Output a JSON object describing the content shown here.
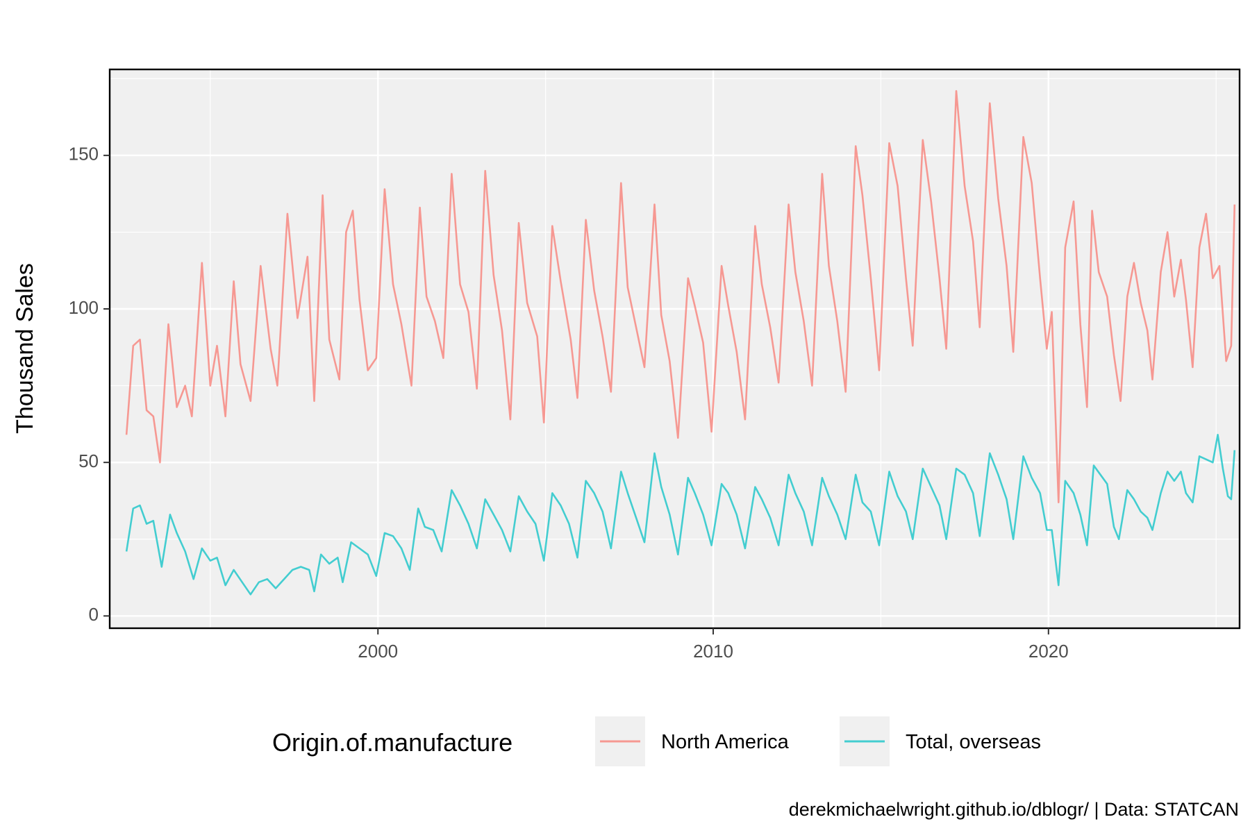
{
  "chart_data": {
    "type": "line",
    "title": "",
    "xlabel": "",
    "ylabel": "Thousand Sales",
    "xlim": [
      1992.0,
      2025.7
    ],
    "ylim": [
      -4,
      178
    ],
    "x_ticks": [
      2000,
      2010,
      2020
    ],
    "x_tick_labels": [
      "2000",
      "2010",
      "2020"
    ],
    "y_ticks": [
      0,
      50,
      100,
      150
    ],
    "y_tick_labels": [
      "0",
      "50",
      "100",
      "150"
    ],
    "grid": true,
    "legend": {
      "title": "Origin.of.manufacture",
      "position": "bottom"
    },
    "caption": "derekmichaelwright.github.io/dblogr/ | Data: STATCAN",
    "series": [
      {
        "name": "North America",
        "color": "#F8766D",
        "points": [
          [
            1992.5,
            59
          ],
          [
            1992.7,
            88
          ],
          [
            1992.9,
            90
          ],
          [
            1993.1,
            67
          ],
          [
            1993.3,
            65
          ],
          [
            1993.5,
            50
          ],
          [
            1993.75,
            95
          ],
          [
            1994.0,
            68
          ],
          [
            1994.25,
            75
          ],
          [
            1994.45,
            65
          ],
          [
            1994.75,
            115
          ],
          [
            1995.0,
            75
          ],
          [
            1995.2,
            88
          ],
          [
            1995.45,
            65
          ],
          [
            1995.7,
            109
          ],
          [
            1995.9,
            82
          ],
          [
            1996.2,
            70
          ],
          [
            1996.5,
            114
          ],
          [
            1996.8,
            87
          ],
          [
            1997.0,
            75
          ],
          [
            1997.3,
            131
          ],
          [
            1997.6,
            97
          ],
          [
            1997.9,
            117
          ],
          [
            1998.1,
            70
          ],
          [
            1998.35,
            137
          ],
          [
            1998.55,
            90
          ],
          [
            1998.85,
            77
          ],
          [
            1999.05,
            125
          ],
          [
            1999.25,
            132
          ],
          [
            1999.45,
            103
          ],
          [
            1999.7,
            80
          ],
          [
            1999.95,
            84
          ],
          [
            2000.2,
            139
          ],
          [
            2000.45,
            108
          ],
          [
            2000.7,
            95
          ],
          [
            2001.0,
            75
          ],
          [
            2001.25,
            133
          ],
          [
            2001.45,
            104
          ],
          [
            2001.7,
            96
          ],
          [
            2001.95,
            84
          ],
          [
            2002.2,
            144
          ],
          [
            2002.45,
            108
          ],
          [
            2002.7,
            99
          ],
          [
            2002.95,
            74
          ],
          [
            2003.2,
            145
          ],
          [
            2003.45,
            111
          ],
          [
            2003.7,
            93
          ],
          [
            2003.95,
            64
          ],
          [
            2004.2,
            128
          ],
          [
            2004.45,
            102
          ],
          [
            2004.75,
            91
          ],
          [
            2004.95,
            63
          ],
          [
            2005.2,
            127
          ],
          [
            2005.45,
            109
          ],
          [
            2005.75,
            90
          ],
          [
            2005.95,
            71
          ],
          [
            2006.2,
            129
          ],
          [
            2006.45,
            106
          ],
          [
            2006.7,
            91
          ],
          [
            2006.95,
            73
          ],
          [
            2007.25,
            141
          ],
          [
            2007.45,
            107
          ],
          [
            2007.7,
            94
          ],
          [
            2007.95,
            81
          ],
          [
            2008.25,
            134
          ],
          [
            2008.45,
            98
          ],
          [
            2008.7,
            83
          ],
          [
            2008.95,
            58
          ],
          [
            2009.25,
            110
          ],
          [
            2009.45,
            101
          ],
          [
            2009.7,
            89
          ],
          [
            2009.95,
            60
          ],
          [
            2010.25,
            114
          ],
          [
            2010.45,
            101
          ],
          [
            2010.7,
            86
          ],
          [
            2010.95,
            64
          ],
          [
            2011.25,
            127
          ],
          [
            2011.45,
            108
          ],
          [
            2011.7,
            94
          ],
          [
            2011.95,
            76
          ],
          [
            2012.25,
            134
          ],
          [
            2012.45,
            112
          ],
          [
            2012.7,
            96
          ],
          [
            2012.95,
            75
          ],
          [
            2013.25,
            144
          ],
          [
            2013.45,
            114
          ],
          [
            2013.7,
            96
          ],
          [
            2013.95,
            73
          ],
          [
            2014.25,
            153
          ],
          [
            2014.45,
            137
          ],
          [
            2014.7,
            110
          ],
          [
            2014.95,
            80
          ],
          [
            2015.25,
            154
          ],
          [
            2015.5,
            140
          ],
          [
            2015.75,
            110
          ],
          [
            2015.95,
            88
          ],
          [
            2016.25,
            155
          ],
          [
            2016.5,
            135
          ],
          [
            2016.75,
            110
          ],
          [
            2016.95,
            87
          ],
          [
            2017.25,
            171
          ],
          [
            2017.5,
            140
          ],
          [
            2017.75,
            122
          ],
          [
            2017.95,
            94
          ],
          [
            2018.25,
            167
          ],
          [
            2018.5,
            136
          ],
          [
            2018.75,
            114
          ],
          [
            2018.95,
            86
          ],
          [
            2019.25,
            156
          ],
          [
            2019.5,
            141
          ],
          [
            2019.75,
            110
          ],
          [
            2019.95,
            87
          ],
          [
            2020.1,
            99
          ],
          [
            2020.3,
            37
          ],
          [
            2020.5,
            120
          ],
          [
            2020.75,
            135
          ],
          [
            2020.95,
            95
          ],
          [
            2021.15,
            68
          ],
          [
            2021.3,
            132
          ],
          [
            2021.5,
            112
          ],
          [
            2021.75,
            104
          ],
          [
            2021.95,
            85
          ],
          [
            2022.15,
            70
          ],
          [
            2022.35,
            104
          ],
          [
            2022.55,
            115
          ],
          [
            2022.75,
            102
          ],
          [
            2022.95,
            93
          ],
          [
            2023.1,
            77
          ],
          [
            2023.35,
            112
          ],
          [
            2023.55,
            125
          ],
          [
            2023.75,
            104
          ],
          [
            2023.95,
            116
          ],
          [
            2024.1,
            103
          ],
          [
            2024.3,
            81
          ],
          [
            2024.5,
            120
          ],
          [
            2024.7,
            131
          ],
          [
            2024.9,
            110
          ],
          [
            2025.1,
            114
          ],
          [
            2025.3,
            83
          ],
          [
            2025.45,
            88
          ],
          [
            2025.55,
            134
          ]
        ]
      },
      {
        "name": "Total, overseas",
        "color": "#00BFC4",
        "points": [
          [
            1992.5,
            21
          ],
          [
            1992.7,
            35
          ],
          [
            1992.9,
            36
          ],
          [
            1993.1,
            30
          ],
          [
            1993.3,
            31
          ],
          [
            1993.55,
            16
          ],
          [
            1993.8,
            33
          ],
          [
            1994.0,
            27
          ],
          [
            1994.25,
            21
          ],
          [
            1994.5,
            12
          ],
          [
            1994.75,
            22
          ],
          [
            1995.0,
            18
          ],
          [
            1995.2,
            19
          ],
          [
            1995.45,
            10
          ],
          [
            1995.7,
            15
          ],
          [
            1995.95,
            11
          ],
          [
            1996.2,
            7
          ],
          [
            1996.45,
            11
          ],
          [
            1996.7,
            12
          ],
          [
            1996.95,
            9
          ],
          [
            1997.2,
            12
          ],
          [
            1997.45,
            15
          ],
          [
            1997.7,
            16
          ],
          [
            1997.95,
            15
          ],
          [
            1998.1,
            8
          ],
          [
            1998.3,
            20
          ],
          [
            1998.55,
            17
          ],
          [
            1998.8,
            19
          ],
          [
            1998.95,
            11
          ],
          [
            1999.2,
            24
          ],
          [
            1999.45,
            22
          ],
          [
            1999.7,
            20
          ],
          [
            1999.95,
            13
          ],
          [
            2000.2,
            27
          ],
          [
            2000.45,
            26
          ],
          [
            2000.7,
            22
          ],
          [
            2000.95,
            15
          ],
          [
            2001.2,
            35
          ],
          [
            2001.4,
            29
          ],
          [
            2001.65,
            28
          ],
          [
            2001.9,
            21
          ],
          [
            2002.2,
            41
          ],
          [
            2002.45,
            36
          ],
          [
            2002.7,
            30
          ],
          [
            2002.95,
            22
          ],
          [
            2003.2,
            38
          ],
          [
            2003.45,
            33
          ],
          [
            2003.7,
            28
          ],
          [
            2003.95,
            21
          ],
          [
            2004.2,
            39
          ],
          [
            2004.45,
            34
          ],
          [
            2004.7,
            30
          ],
          [
            2004.95,
            18
          ],
          [
            2005.2,
            40
          ],
          [
            2005.45,
            36
          ],
          [
            2005.7,
            30
          ],
          [
            2005.95,
            19
          ],
          [
            2006.2,
            44
          ],
          [
            2006.45,
            40
          ],
          [
            2006.7,
            34
          ],
          [
            2006.95,
            22
          ],
          [
            2007.25,
            47
          ],
          [
            2007.45,
            40
          ],
          [
            2007.7,
            32
          ],
          [
            2007.95,
            24
          ],
          [
            2008.25,
            53
          ],
          [
            2008.45,
            42
          ],
          [
            2008.7,
            33
          ],
          [
            2008.95,
            20
          ],
          [
            2009.25,
            45
          ],
          [
            2009.45,
            40
          ],
          [
            2009.7,
            33
          ],
          [
            2009.95,
            23
          ],
          [
            2010.25,
            43
          ],
          [
            2010.45,
            40
          ],
          [
            2010.7,
            33
          ],
          [
            2010.95,
            22
          ],
          [
            2011.25,
            42
          ],
          [
            2011.45,
            38
          ],
          [
            2011.7,
            32
          ],
          [
            2011.95,
            23
          ],
          [
            2012.25,
            46
          ],
          [
            2012.45,
            40
          ],
          [
            2012.7,
            34
          ],
          [
            2012.95,
            23
          ],
          [
            2013.25,
            45
          ],
          [
            2013.45,
            39
          ],
          [
            2013.7,
            33
          ],
          [
            2013.95,
            25
          ],
          [
            2014.25,
            46
          ],
          [
            2014.45,
            37
          ],
          [
            2014.7,
            34
          ],
          [
            2014.95,
            23
          ],
          [
            2015.25,
            47
          ],
          [
            2015.5,
            39
          ],
          [
            2015.75,
            34
          ],
          [
            2015.95,
            25
          ],
          [
            2016.25,
            48
          ],
          [
            2016.5,
            42
          ],
          [
            2016.75,
            36
          ],
          [
            2016.95,
            25
          ],
          [
            2017.25,
            48
          ],
          [
            2017.5,
            46
          ],
          [
            2017.75,
            40
          ],
          [
            2017.95,
            26
          ],
          [
            2018.25,
            53
          ],
          [
            2018.5,
            46
          ],
          [
            2018.75,
            38
          ],
          [
            2018.95,
            25
          ],
          [
            2019.25,
            52
          ],
          [
            2019.5,
            45
          ],
          [
            2019.75,
            40
          ],
          [
            2019.95,
            28
          ],
          [
            2020.1,
            28
          ],
          [
            2020.3,
            10
          ],
          [
            2020.5,
            44
          ],
          [
            2020.75,
            40
          ],
          [
            2020.95,
            33
          ],
          [
            2021.15,
            23
          ],
          [
            2021.35,
            49
          ],
          [
            2021.55,
            46
          ],
          [
            2021.75,
            43
          ],
          [
            2021.95,
            29
          ],
          [
            2022.1,
            25
          ],
          [
            2022.35,
            41
          ],
          [
            2022.55,
            38
          ],
          [
            2022.75,
            34
          ],
          [
            2022.95,
            32
          ],
          [
            2023.1,
            28
          ],
          [
            2023.35,
            40
          ],
          [
            2023.55,
            47
          ],
          [
            2023.75,
            44
          ],
          [
            2023.95,
            47
          ],
          [
            2024.1,
            40
          ],
          [
            2024.3,
            37
          ],
          [
            2024.5,
            52
          ],
          [
            2024.7,
            51
          ],
          [
            2024.9,
            50
          ],
          [
            2025.05,
            59
          ],
          [
            2025.2,
            48
          ],
          [
            2025.35,
            39
          ],
          [
            2025.45,
            38
          ],
          [
            2025.55,
            54
          ]
        ]
      }
    ]
  }
}
